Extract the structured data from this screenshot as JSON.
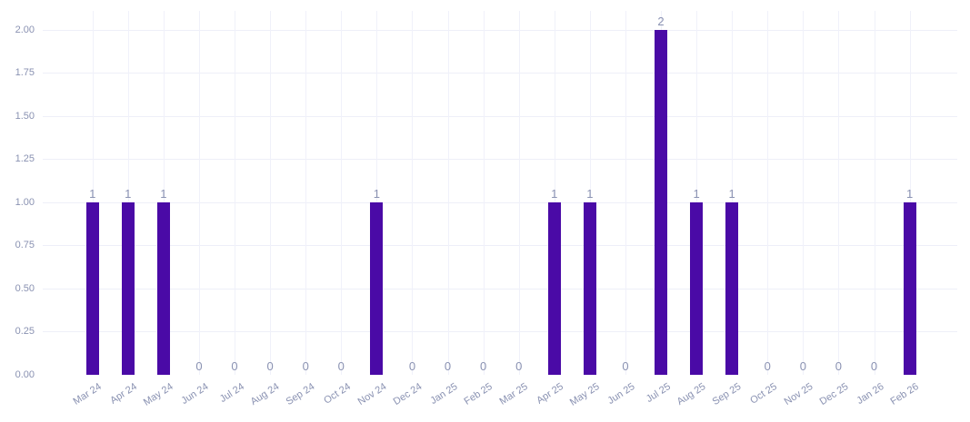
{
  "chart_data": {
    "type": "bar",
    "title": "",
    "xlabel": "",
    "ylabel": "",
    "categories": [
      "Mar 24",
      "Apr 24",
      "May 24",
      "Jun 24",
      "Jul 24",
      "Aug 24",
      "Sep 24",
      "Oct 24",
      "Nov 24",
      "Dec 24",
      "Jan 25",
      "Feb 25",
      "Mar 25",
      "Apr 25",
      "May 25",
      "Jun 25",
      "Jul 25",
      "Aug 25",
      "Sep 25",
      "Oct 25",
      "Nov 25",
      "Dec 25",
      "Jan 26",
      "Feb 26"
    ],
    "values": [
      1,
      1,
      1,
      0,
      0,
      0,
      0,
      0,
      1,
      0,
      0,
      0,
      0,
      1,
      1,
      0,
      2,
      1,
      1,
      0,
      0,
      0,
      0,
      1
    ],
    "value_labels": [
      "1",
      "1",
      "1",
      "0",
      "0",
      "0",
      "0",
      "0",
      "1",
      "0",
      "0",
      "0",
      "0",
      "1",
      "1",
      "0",
      "2",
      "1",
      "1",
      "0",
      "0",
      "0",
      "0",
      "1"
    ],
    "y_ticks": [
      "0.00",
      "0.25",
      "0.50",
      "0.75",
      "1.00",
      "1.25",
      "1.50",
      "1.75",
      "2.00"
    ],
    "ylim": [
      0,
      2.11
    ],
    "grid": true,
    "legend": false,
    "colors": {
      "bar": "#4a0aa6",
      "tick_label": "#8a92b2",
      "value_label": "#8a92b2",
      "h_gridline": "#eeeff8",
      "v_gridline": "#f0f1fa",
      "background": "#ffffff"
    }
  }
}
